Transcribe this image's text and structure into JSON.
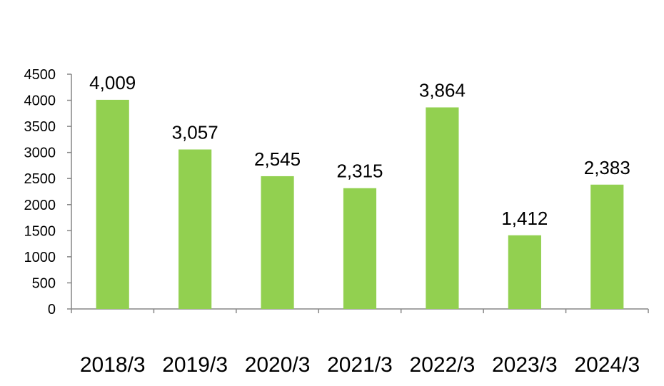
{
  "chart_data": {
    "type": "bar",
    "categories": [
      "2018/3",
      "2019/3",
      "2020/3",
      "2021/3",
      "2022/3",
      "2023/3",
      "2024/3"
    ],
    "values": [
      4009,
      3057,
      2545,
      2315,
      3864,
      1412,
      2383
    ],
    "data_labels": [
      "4,009",
      "3,057",
      "2,545",
      "2,315",
      "3,864",
      "1,412",
      "2,383"
    ],
    "yticks": [
      "0",
      "500",
      "1000",
      "1500",
      "2000",
      "2500",
      "3000",
      "3500",
      "4000",
      "4500"
    ],
    "ylim": [
      0,
      4500
    ],
    "bar_color": "#92D050",
    "grid": false,
    "legend": "none",
    "title": "",
    "xlabel": "",
    "ylabel": ""
  }
}
